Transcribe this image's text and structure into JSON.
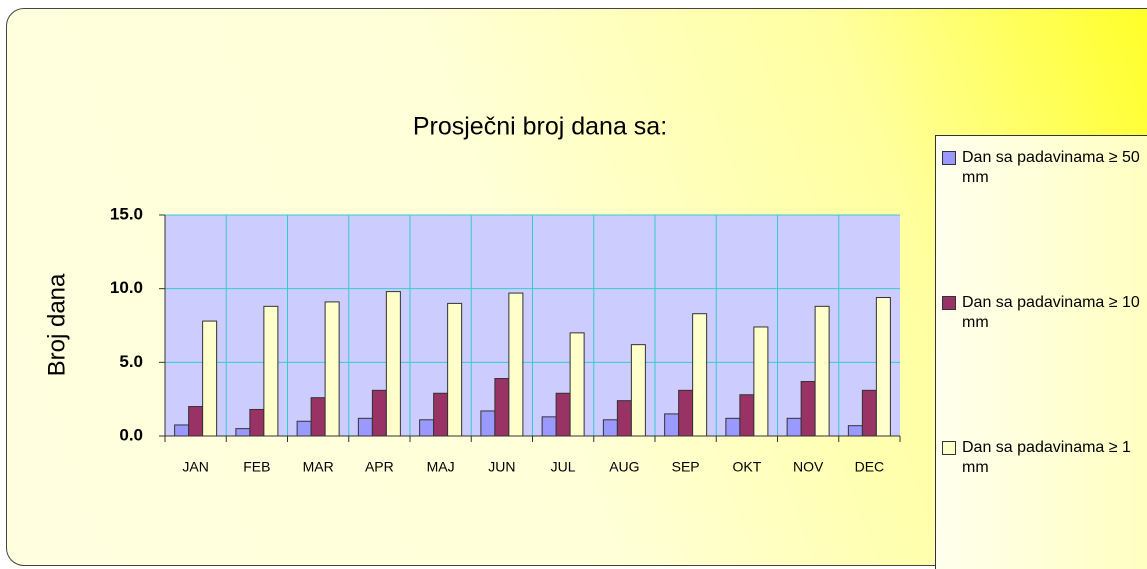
{
  "chart_data": {
    "type": "bar",
    "title": "Prosječni broj dana sa:",
    "y_label": "Broj dana",
    "categories": [
      "JAN",
      "FEB",
      "MAR",
      "APR",
      "MAJ",
      "JUN",
      "JUL",
      "AUG",
      "SEP",
      "OKT",
      "NOV",
      "DEC"
    ],
    "series": [
      {
        "name": "Dan sa padavinama ≥ 50 mm",
        "color": "#9999ff",
        "values": [
          0.75,
          0.5,
          1.0,
          1.2,
          1.1,
          1.7,
          1.3,
          1.1,
          1.5,
          1.2,
          1.2,
          0.7
        ]
      },
      {
        "name": "Dan sa padavinama ≥ 10 mm",
        "color": "#993366",
        "values": [
          2.0,
          1.8,
          2.6,
          3.1,
          2.9,
          3.9,
          2.9,
          2.4,
          3.1,
          2.8,
          3.7,
          3.1
        ]
      },
      {
        "name": "Dan sa padavinama ≥ 1 mm",
        "color": "#ffffcc",
        "values": [
          7.8,
          8.8,
          9.1,
          9.8,
          9.0,
          9.7,
          7.0,
          6.2,
          8.3,
          7.4,
          8.8,
          9.4
        ]
      }
    ],
    "ylim": [
      0,
      15
    ],
    "yticks": [
      {
        "value": 0,
        "label": "0.0"
      },
      {
        "value": 5,
        "label": "5.0"
      },
      {
        "value": 10,
        "label": "10.0"
      },
      {
        "value": 15,
        "label": "15.0"
      }
    ],
    "grid": true,
    "legend": "right"
  }
}
